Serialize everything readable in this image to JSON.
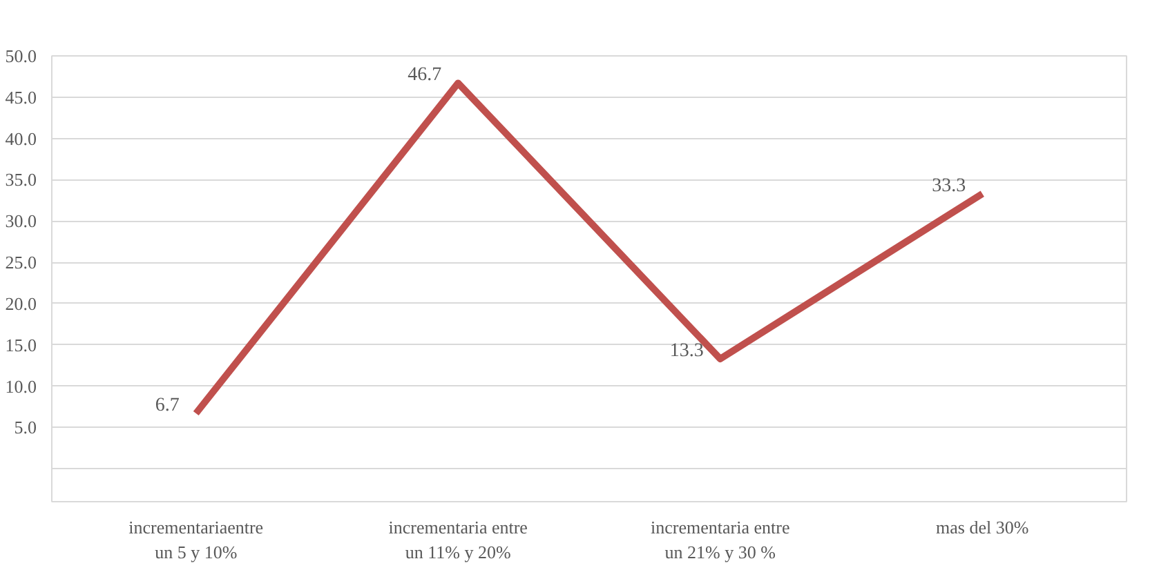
{
  "chart_data": {
    "type": "line",
    "categories": [
      "incrementariaentre\nun 5 y 10%",
      "incrementaria entre\nun 11% y 20%",
      "incrementaria entre\nun 21% y 30 %",
      "mas del 30%"
    ],
    "series": [
      {
        "color": "#c0504d",
        "values": [
          6.7,
          46.7,
          13.3,
          33.3
        ]
      }
    ],
    "ylim": [
      -4,
      50
    ],
    "yticks": [
      {
        "value": 0,
        "label": null
      },
      {
        "value": 5,
        "label": "5.0"
      },
      {
        "value": 10,
        "label": "10.0"
      },
      {
        "value": 15,
        "label": "15.0"
      },
      {
        "value": 20,
        "label": "20.0"
      },
      {
        "value": 25,
        "label": "25.0"
      },
      {
        "value": 30,
        "label": "30.0"
      },
      {
        "value": 35,
        "label": "35.0"
      },
      {
        "value": 40,
        "label": "40.0"
      },
      {
        "value": 45,
        "label": "45.0"
      },
      {
        "value": 50,
        "label": "50.0"
      }
    ],
    "grid": "y",
    "data_labels": true,
    "marker": "none",
    "line_style": "solid"
  }
}
